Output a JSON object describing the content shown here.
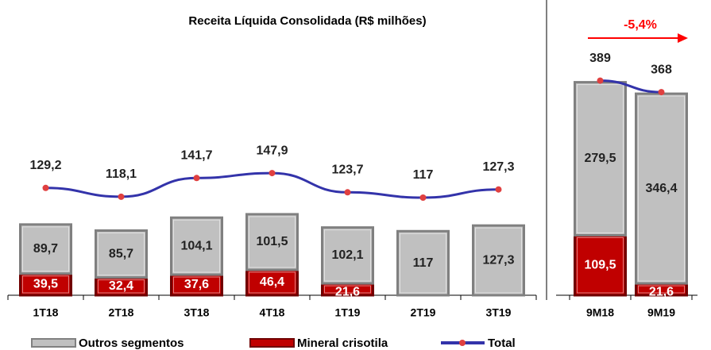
{
  "chart_data": [
    {
      "type": "bar",
      "title": "Receita Líquida Consolidada (R$ milhões)",
      "categories": [
        "1T18",
        "2T18",
        "3T18",
        "4T18",
        "1T19",
        "2T19",
        "3T19"
      ],
      "series": [
        {
          "name": "Outros segmentos",
          "color": "#c0c0c0",
          "values": [
            89.7,
            85.7,
            104.1,
            101.5,
            102.1,
            117,
            127.3
          ],
          "value_labels": [
            "89,7",
            "85,7",
            "104,1",
            "101,5",
            "102,1",
            "117",
            "127,3"
          ]
        },
        {
          "name": "Mineral crisotila",
          "color": "#c00000",
          "values": [
            39.5,
            32.4,
            37.6,
            46.4,
            21.6,
            null,
            null
          ],
          "value_labels": [
            "39,5",
            "32,4",
            "37,6",
            "46,4",
            "21,6",
            null,
            null
          ]
        },
        {
          "name": "Total",
          "type": "line",
          "color": "#3333aa",
          "values": [
            129.2,
            118.1,
            141.7,
            147.9,
            123.7,
            117,
            127.3
          ],
          "value_labels": [
            "129,2",
            "118,1",
            "141,7",
            "147,9",
            "123,7",
            "117",
            "127,3"
          ]
        }
      ]
    },
    {
      "type": "bar",
      "annotation": "-5,4%",
      "categories": [
        "9M18",
        "9M19"
      ],
      "series": [
        {
          "color": "#c0c0c0",
          "values": [
            279.5,
            346.4
          ],
          "value_labels": [
            "279,5",
            "346,4"
          ]
        },
        {
          "color": "#c00000",
          "values": [
            109.5,
            21.6
          ],
          "value_labels": [
            "109,5",
            "21,6"
          ]
        },
        {
          "type": "line",
          "color": "#3333aa",
          "values": [
            389,
            368
          ]
        }
      ]
    }
  ]
}
